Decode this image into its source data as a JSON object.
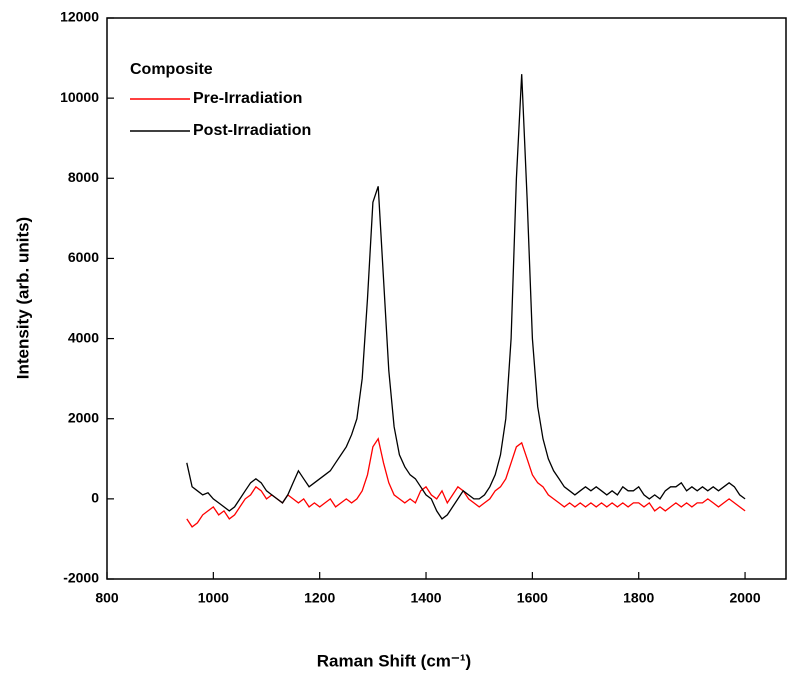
{
  "chart_data": {
    "type": "line",
    "xlabel": "Raman Shift (cm⁻¹)",
    "ylabel": "Intensity (arb. units)",
    "legend_title": "Composite",
    "legend": "upper left",
    "xlim": [
      800,
      2077
    ],
    "xticks": [
      800,
      1000,
      1200,
      1400,
      1600,
      1800,
      2000
    ],
    "ylim": [
      -2000,
      12000
    ],
    "yticks": [
      -2000,
      0,
      2000,
      4000,
      6000,
      8000,
      10000,
      12000
    ],
    "x": [
      950,
      960,
      970,
      980,
      990,
      1000,
      1010,
      1020,
      1030,
      1040,
      1050,
      1060,
      1070,
      1080,
      1090,
      1100,
      1110,
      1120,
      1130,
      1140,
      1150,
      1160,
      1170,
      1180,
      1190,
      1200,
      1210,
      1220,
      1230,
      1240,
      1250,
      1260,
      1270,
      1280,
      1290,
      1300,
      1310,
      1320,
      1330,
      1340,
      1350,
      1360,
      1370,
      1380,
      1390,
      1400,
      1410,
      1420,
      1430,
      1440,
      1450,
      1460,
      1470,
      1480,
      1490,
      1500,
      1510,
      1520,
      1530,
      1540,
      1550,
      1560,
      1570,
      1580,
      1590,
      1600,
      1610,
      1620,
      1630,
      1640,
      1650,
      1660,
      1670,
      1680,
      1690,
      1700,
      1710,
      1720,
      1730,
      1740,
      1750,
      1760,
      1770,
      1780,
      1790,
      1800,
      1810,
      1820,
      1830,
      1840,
      1850,
      1860,
      1870,
      1880,
      1890,
      1900,
      1910,
      1920,
      1930,
      1940,
      1950,
      1960,
      1970,
      1980,
      1990,
      2000
    ],
    "series": [
      {
        "name": "Pre-Irradiation",
        "color": "#ff0000",
        "values": [
          -500,
          -700,
          -600,
          -400,
          -300,
          -200,
          -400,
          -300,
          -500,
          -400,
          -200,
          0,
          100,
          300,
          200,
          0,
          100,
          0,
          -100,
          100,
          0,
          -100,
          0,
          -200,
          -100,
          -200,
          -100,
          0,
          -200,
          -100,
          0,
          -100,
          0,
          200,
          600,
          1300,
          1500,
          900,
          400,
          100,
          0,
          -100,
          0,
          -100,
          200,
          300,
          100,
          0,
          200,
          -100,
          100,
          300,
          200,
          0,
          -100,
          -200,
          -100,
          0,
          200,
          300,
          500,
          900,
          1300,
          1400,
          1000,
          600,
          400,
          300,
          100,
          0,
          -100,
          -200,
          -100,
          -200,
          -100,
          -200,
          -100,
          -200,
          -100,
          -200,
          -100,
          -200,
          -100,
          -200,
          -100,
          -100,
          -200,
          -100,
          -300,
          -200,
          -300,
          -200,
          -100,
          -200,
          -100,
          -200,
          -100,
          -100,
          0,
          -100,
          -200,
          -100,
          0,
          -100,
          -200,
          -300
        ]
      },
      {
        "name": "Post-Irradiation",
        "color": "#000000",
        "values": [
          900,
          300,
          200,
          100,
          150,
          0,
          -100,
          -200,
          -300,
          -200,
          0,
          200,
          400,
          500,
          400,
          200,
          100,
          0,
          -100,
          100,
          400,
          700,
          500,
          300,
          400,
          500,
          600,
          700,
          900,
          1100,
          1300,
          1600,
          2000,
          3000,
          5000,
          7400,
          7800,
          5500,
          3200,
          1800,
          1100,
          800,
          600,
          500,
          300,
          100,
          0,
          -300,
          -500,
          -400,
          -200,
          0,
          200,
          100,
          0,
          0,
          100,
          300,
          600,
          1100,
          2000,
          4000,
          8000,
          10600,
          7500,
          4000,
          2300,
          1500,
          1000,
          700,
          500,
          300,
          200,
          100,
          200,
          300,
          200,
          300,
          200,
          100,
          200,
          100,
          300,
          200,
          200,
          300,
          100,
          0,
          100,
          0,
          200,
          300,
          300,
          400,
          200,
          300,
          200,
          300,
          200,
          300,
          200,
          300,
          400,
          300,
          100,
          0
        ]
      }
    ]
  }
}
